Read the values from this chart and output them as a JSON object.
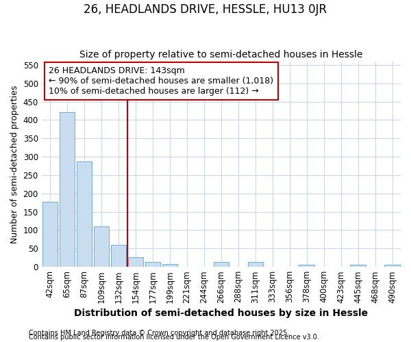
{
  "title1": "26, HEADLANDS DRIVE, HESSLE, HU13 0JR",
  "title2": "Size of property relative to semi-detached houses in Hessle",
  "xlabel": "Distribution of semi-detached houses by size in Hessle",
  "ylabel": "Number of semi-detached properties",
  "categories": [
    "42sqm",
    "65sqm",
    "87sqm",
    "109sqm",
    "132sqm",
    "154sqm",
    "177sqm",
    "199sqm",
    "221sqm",
    "244sqm",
    "266sqm",
    "288sqm",
    "311sqm",
    "333sqm",
    "356sqm",
    "378sqm",
    "400sqm",
    "423sqm",
    "445sqm",
    "468sqm",
    "490sqm"
  ],
  "values": [
    178,
    422,
    288,
    110,
    60,
    26,
    14,
    8,
    0,
    0,
    14,
    0,
    13,
    0,
    0,
    6,
    0,
    0,
    5,
    0,
    5
  ],
  "bar_color": "#c8ddf0",
  "bar_edge_color": "#6aaed6",
  "vline_x_index": 5,
  "vline_color": "#c00000",
  "annotation_line1": "26 HEADLANDS DRIVE: 143sqm",
  "annotation_line2": "← 90% of semi-detached houses are smaller (1,018)",
  "annotation_line3": "10% of semi-detached houses are larger (112) →",
  "annotation_box_color": "white",
  "annotation_box_edge": "#c00000",
  "ylim": [
    0,
    560
  ],
  "yticks": [
    0,
    50,
    100,
    150,
    200,
    250,
    300,
    350,
    400,
    450,
    500,
    550
  ],
  "footer1": "Contains HM Land Registry data © Crown copyright and database right 2025.",
  "footer2": "Contains public sector information licensed under the Open Government Licence v3.0.",
  "bg_color": "#ffffff",
  "plot_bg_color": "#ffffff",
  "grid_color": "#c8d8ec",
  "title1_fontsize": 12,
  "title2_fontsize": 10,
  "annotation_fontsize": 9,
  "xlabel_fontsize": 10,
  "ylabel_fontsize": 9,
  "tick_fontsize": 8.5,
  "footer_fontsize": 7
}
